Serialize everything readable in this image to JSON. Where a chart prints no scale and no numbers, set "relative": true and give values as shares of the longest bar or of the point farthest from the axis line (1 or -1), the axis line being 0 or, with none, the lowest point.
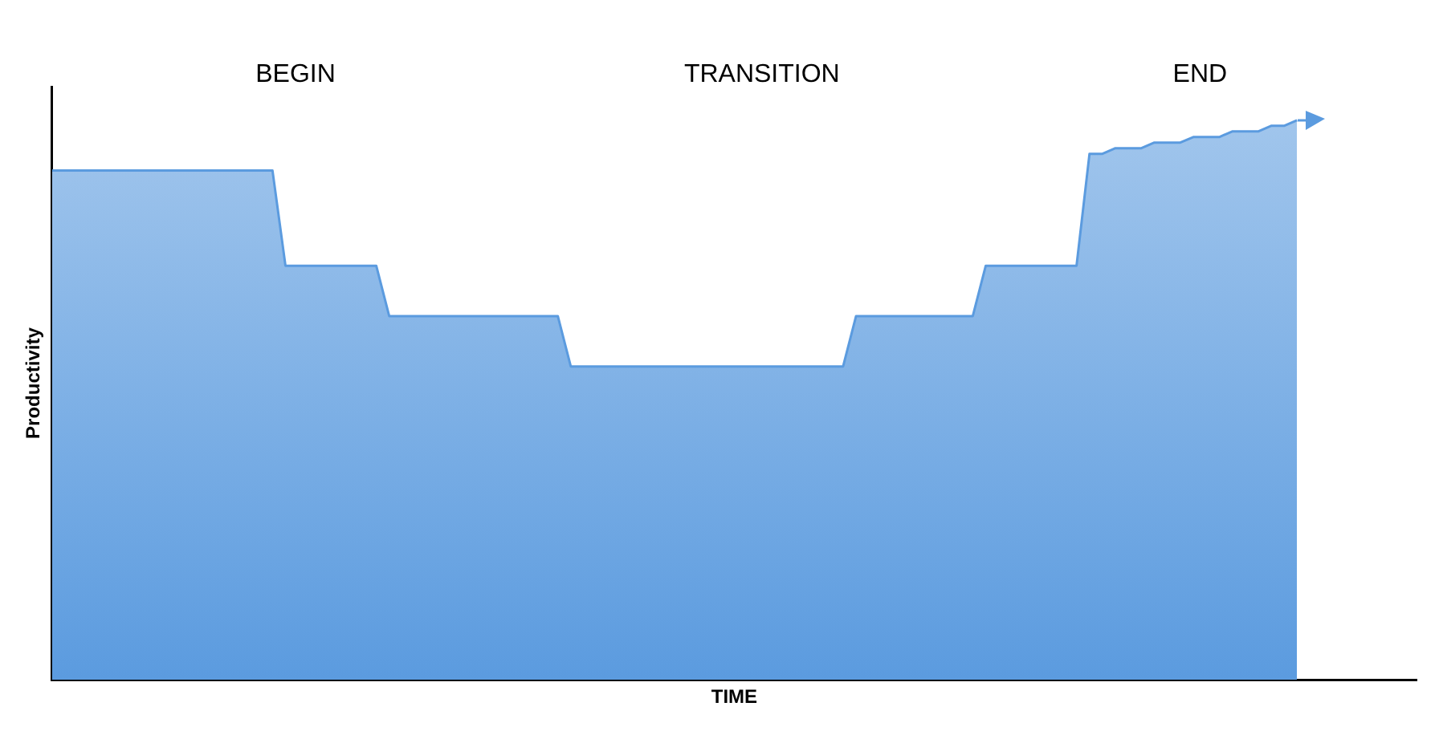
{
  "chart_data": {
    "type": "area",
    "relative": true,
    "xlabel": "TIME",
    "ylabel": "Productivity",
    "annotations": [
      "BEGIN",
      "TRANSITION",
      "END"
    ],
    "legend": false,
    "grid": false,
    "marker": "none",
    "categories": [
      null,
      null,
      null,
      null,
      null,
      null,
      null,
      null,
      null,
      null,
      null,
      null,
      null,
      null,
      null,
      null,
      null,
      null,
      null,
      null,
      null,
      null,
      null,
      null,
      null,
      null,
      null,
      null,
      null,
      null,
      null,
      null,
      null,
      null,
      null,
      null,
      null,
      null,
      null,
      null,
      null,
      null,
      null,
      null,
      null,
      null,
      null,
      null,
      null,
      null,
      null,
      null,
      null,
      null,
      null,
      null,
      null,
      null,
      null,
      null,
      null,
      null,
      null,
      null,
      null,
      null,
      null,
      null,
      null,
      null,
      null,
      null,
      null,
      null,
      null,
      null,
      null,
      null,
      null,
      null,
      null,
      null,
      null,
      null,
      null,
      null,
      null,
      null,
      null,
      null,
      null,
      null,
      null,
      null,
      null,
      null,
      null
    ],
    "series": [
      {
        "color": "#5b9bdf",
        "values": [
          0.91,
          0.91,
          0.91,
          0.91,
          0.91,
          0.91,
          0.91,
          0.91,
          0.91,
          0.91,
          0.91,
          0.91,
          0.91,
          0.91,
          0.91,
          0.91,
          0.91,
          0.91,
          0.74,
          0.74,
          0.74,
          0.74,
          0.74,
          0.74,
          0.74,
          0.74,
          0.65,
          0.65,
          0.65,
          0.65,
          0.65,
          0.65,
          0.65,
          0.65,
          0.65,
          0.65,
          0.65,
          0.65,
          0.65,
          0.65,
          0.56,
          0.56,
          0.56,
          0.56,
          0.56,
          0.56,
          0.56,
          0.56,
          0.56,
          0.56,
          0.56,
          0.56,
          0.56,
          0.56,
          0.56,
          0.56,
          0.56,
          0.56,
          0.56,
          0.56,
          0.56,
          0.56,
          0.65,
          0.65,
          0.65,
          0.65,
          0.65,
          0.65,
          0.65,
          0.65,
          0.65,
          0.65,
          0.74,
          0.74,
          0.74,
          0.74,
          0.74,
          0.74,
          0.74,
          0.74,
          0.94,
          0.94,
          0.95,
          0.95,
          0.95,
          0.96,
          0.96,
          0.96,
          0.97,
          0.97,
          0.97,
          0.98,
          0.98,
          0.98,
          0.99,
          0.99,
          1.0
        ]
      }
    ]
  }
}
